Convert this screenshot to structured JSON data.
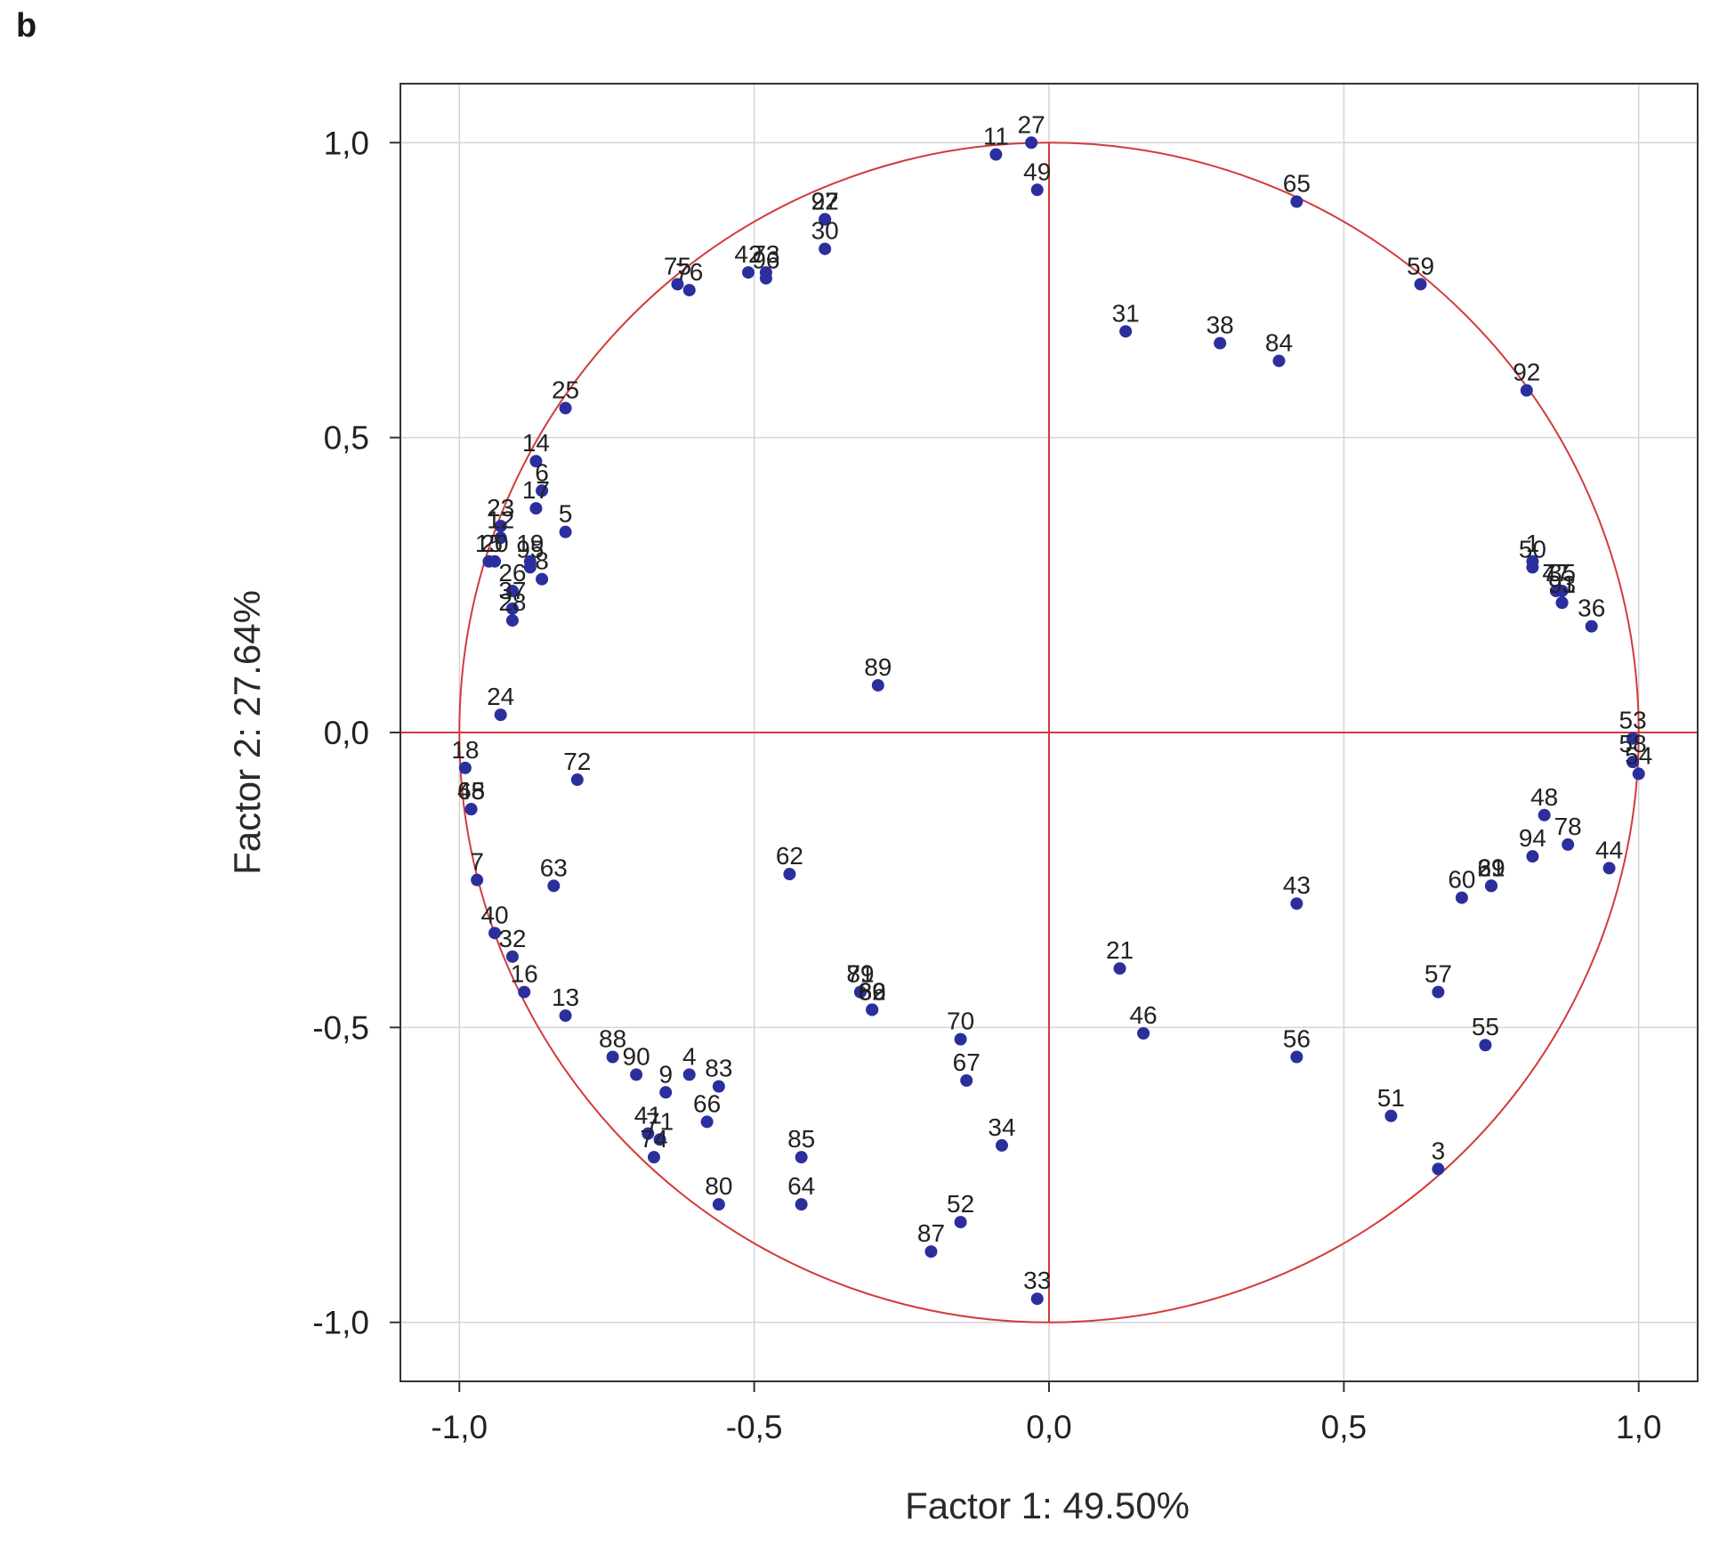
{
  "panel_label": "b",
  "chart_data": {
    "type": "scatter",
    "title": "",
    "xlabel": "Factor 1: 49.50%",
    "ylabel": "Factor 2: 27.64%",
    "xlim": [
      -1.1,
      1.1
    ],
    "ylim": [
      -1.1,
      1.1
    ],
    "x_ticks": [
      -1.0,
      -0.5,
      0.0,
      0.5,
      1.0
    ],
    "x_tick_labels": [
      "-1,0",
      "-0,5",
      "0,0",
      "0,5",
      "1,0"
    ],
    "y_ticks": [
      1.0,
      0.5,
      0.0,
      -0.5,
      -1.0
    ],
    "y_tick_labels": [
      "1,0",
      "0,5",
      "0,0",
      "-0,5",
      "-1,0"
    ],
    "grid": true,
    "unit_circle": true,
    "colors": {
      "point": "#2b2f9e",
      "circle": "#d23b3b",
      "axes_lines": "#d23b3b",
      "grid": "#d4d4d4",
      "frame": "#333333"
    },
    "points": [
      {
        "label": "1",
        "x": 0.82,
        "y": 0.29
      },
      {
        "label": "3",
        "x": 0.66,
        "y": -0.74
      },
      {
        "label": "4",
        "x": -0.61,
        "y": -0.58
      },
      {
        "label": "5",
        "x": -0.82,
        "y": 0.34
      },
      {
        "label": "6",
        "x": -0.86,
        "y": 0.41
      },
      {
        "label": "7",
        "x": -0.97,
        "y": -0.25
      },
      {
        "label": "8",
        "x": -0.86,
        "y": 0.26
      },
      {
        "label": "9",
        "x": -0.65,
        "y": -0.61
      },
      {
        "label": "11",
        "x": -0.09,
        "y": 0.98
      },
      {
        "label": "12",
        "x": -0.93,
        "y": 0.33
      },
      {
        "label": "13",
        "x": -0.82,
        "y": -0.48
      },
      {
        "label": "14",
        "x": -0.87,
        "y": 0.46
      },
      {
        "label": "15",
        "x": -0.95,
        "y": 0.29
      },
      {
        "label": "16",
        "x": -0.89,
        "y": -0.44
      },
      {
        "label": "17",
        "x": -0.87,
        "y": 0.38
      },
      {
        "label": "18",
        "x": -0.99,
        "y": -0.06
      },
      {
        "label": "19",
        "x": -0.88,
        "y": 0.29
      },
      {
        "label": "20",
        "x": -0.94,
        "y": 0.29
      },
      {
        "label": "21",
        "x": 0.12,
        "y": -0.4
      },
      {
        "label": "22",
        "x": -0.38,
        "y": 0.87
      },
      {
        "label": "23",
        "x": -0.93,
        "y": 0.35
      },
      {
        "label": "24",
        "x": -0.93,
        "y": 0.03
      },
      {
        "label": "25",
        "x": -0.82,
        "y": 0.55
      },
      {
        "label": "26",
        "x": -0.91,
        "y": 0.24
      },
      {
        "label": "27",
        "x": -0.03,
        "y": 1.0
      },
      {
        "label": "28",
        "x": -0.91,
        "y": 0.19
      },
      {
        "label": "29",
        "x": 0.75,
        "y": -0.26
      },
      {
        "label": "30",
        "x": -0.38,
        "y": 0.82
      },
      {
        "label": "31",
        "x": 0.13,
        "y": 0.68
      },
      {
        "label": "32",
        "x": -0.91,
        "y": -0.38
      },
      {
        "label": "33",
        "x": -0.02,
        "y": -0.96
      },
      {
        "label": "34",
        "x": -0.08,
        "y": -0.7
      },
      {
        "label": "35",
        "x": 0.87,
        "y": 0.24
      },
      {
        "label": "36",
        "x": 0.92,
        "y": 0.18
      },
      {
        "label": "37",
        "x": -0.91,
        "y": 0.21
      },
      {
        "label": "38",
        "x": 0.29,
        "y": 0.66
      },
      {
        "label": "39",
        "x": 0.75,
        "y": -0.26
      },
      {
        "label": "40",
        "x": -0.94,
        "y": -0.34
      },
      {
        "label": "41",
        "x": -0.68,
        "y": -0.68
      },
      {
        "label": "42",
        "x": -0.51,
        "y": 0.78
      },
      {
        "label": "43",
        "x": 0.42,
        "y": -0.29
      },
      {
        "label": "44",
        "x": 0.95,
        "y": -0.23
      },
      {
        "label": "45",
        "x": -0.98,
        "y": -0.13
      },
      {
        "label": "46",
        "x": 0.16,
        "y": -0.51
      },
      {
        "label": "47",
        "x": 0.86,
        "y": 0.24
      },
      {
        "label": "48",
        "x": 0.84,
        "y": -0.14
      },
      {
        "label": "49",
        "x": -0.02,
        "y": 0.92
      },
      {
        "label": "50",
        "x": 0.82,
        "y": 0.28
      },
      {
        "label": "51",
        "x": 0.58,
        "y": -0.65
      },
      {
        "label": "52",
        "x": -0.15,
        "y": -0.83
      },
      {
        "label": "53",
        "x": 0.99,
        "y": -0.01
      },
      {
        "label": "54",
        "x": 1.0,
        "y": -0.07
      },
      {
        "label": "55",
        "x": 0.74,
        "y": -0.53
      },
      {
        "label": "56",
        "x": 0.42,
        "y": -0.55
      },
      {
        "label": "57",
        "x": 0.66,
        "y": -0.44
      },
      {
        "label": "58",
        "x": 0.99,
        "y": -0.05
      },
      {
        "label": "59",
        "x": 0.63,
        "y": 0.76
      },
      {
        "label": "60",
        "x": 0.7,
        "y": -0.28
      },
      {
        "label": "61",
        "x": 0.75,
        "y": -0.26
      },
      {
        "label": "62",
        "x": -0.44,
        "y": -0.24
      },
      {
        "label": "63",
        "x": -0.84,
        "y": -0.26
      },
      {
        "label": "64",
        "x": -0.42,
        "y": -0.8
      },
      {
        "label": "65",
        "x": 0.42,
        "y": 0.9
      },
      {
        "label": "66",
        "x": -0.58,
        "y": -0.66
      },
      {
        "label": "67",
        "x": -0.14,
        "y": -0.59
      },
      {
        "label": "68",
        "x": -0.98,
        "y": -0.13
      },
      {
        "label": "69",
        "x": -0.3,
        "y": -0.47
      },
      {
        "label": "70",
        "x": -0.15,
        "y": -0.52
      },
      {
        "label": "71",
        "x": -0.66,
        "y": -0.69
      },
      {
        "label": "72",
        "x": -0.8,
        "y": -0.08
      },
      {
        "label": "73",
        "x": -0.48,
        "y": 0.78
      },
      {
        "label": "74",
        "x": -0.67,
        "y": -0.72
      },
      {
        "label": "75",
        "x": -0.63,
        "y": 0.76
      },
      {
        "label": "76",
        "x": -0.61,
        "y": 0.75
      },
      {
        "label": "77",
        "x": 0.86,
        "y": 0.24
      },
      {
        "label": "78",
        "x": 0.88,
        "y": -0.19
      },
      {
        "label": "79",
        "x": -0.32,
        "y": -0.44
      },
      {
        "label": "80",
        "x": -0.56,
        "y": -0.8
      },
      {
        "label": "81",
        "x": -0.32,
        "y": -0.44
      },
      {
        "label": "82",
        "x": -0.3,
        "y": -0.47
      },
      {
        "label": "83",
        "x": -0.56,
        "y": -0.6
      },
      {
        "label": "84",
        "x": 0.39,
        "y": 0.63
      },
      {
        "label": "85",
        "x": -0.42,
        "y": -0.72
      },
      {
        "label": "86",
        "x": -0.3,
        "y": -0.47
      },
      {
        "label": "87",
        "x": -0.2,
        "y": -0.88
      },
      {
        "label": "88",
        "x": -0.74,
        "y": -0.55
      },
      {
        "label": "89",
        "x": -0.29,
        "y": 0.08
      },
      {
        "label": "90",
        "x": -0.7,
        "y": -0.58
      },
      {
        "label": "91",
        "x": 0.87,
        "y": 0.22
      },
      {
        "label": "92",
        "x": 0.81,
        "y": 0.58
      },
      {
        "label": "93",
        "x": 0.87,
        "y": 0.22
      },
      {
        "label": "94",
        "x": 0.82,
        "y": -0.21
      },
      {
        "label": "95",
        "x": -0.88,
        "y": 0.28
      },
      {
        "label": "96",
        "x": -0.48,
        "y": 0.77
      },
      {
        "label": "97",
        "x": -0.38,
        "y": 0.87
      }
    ]
  }
}
